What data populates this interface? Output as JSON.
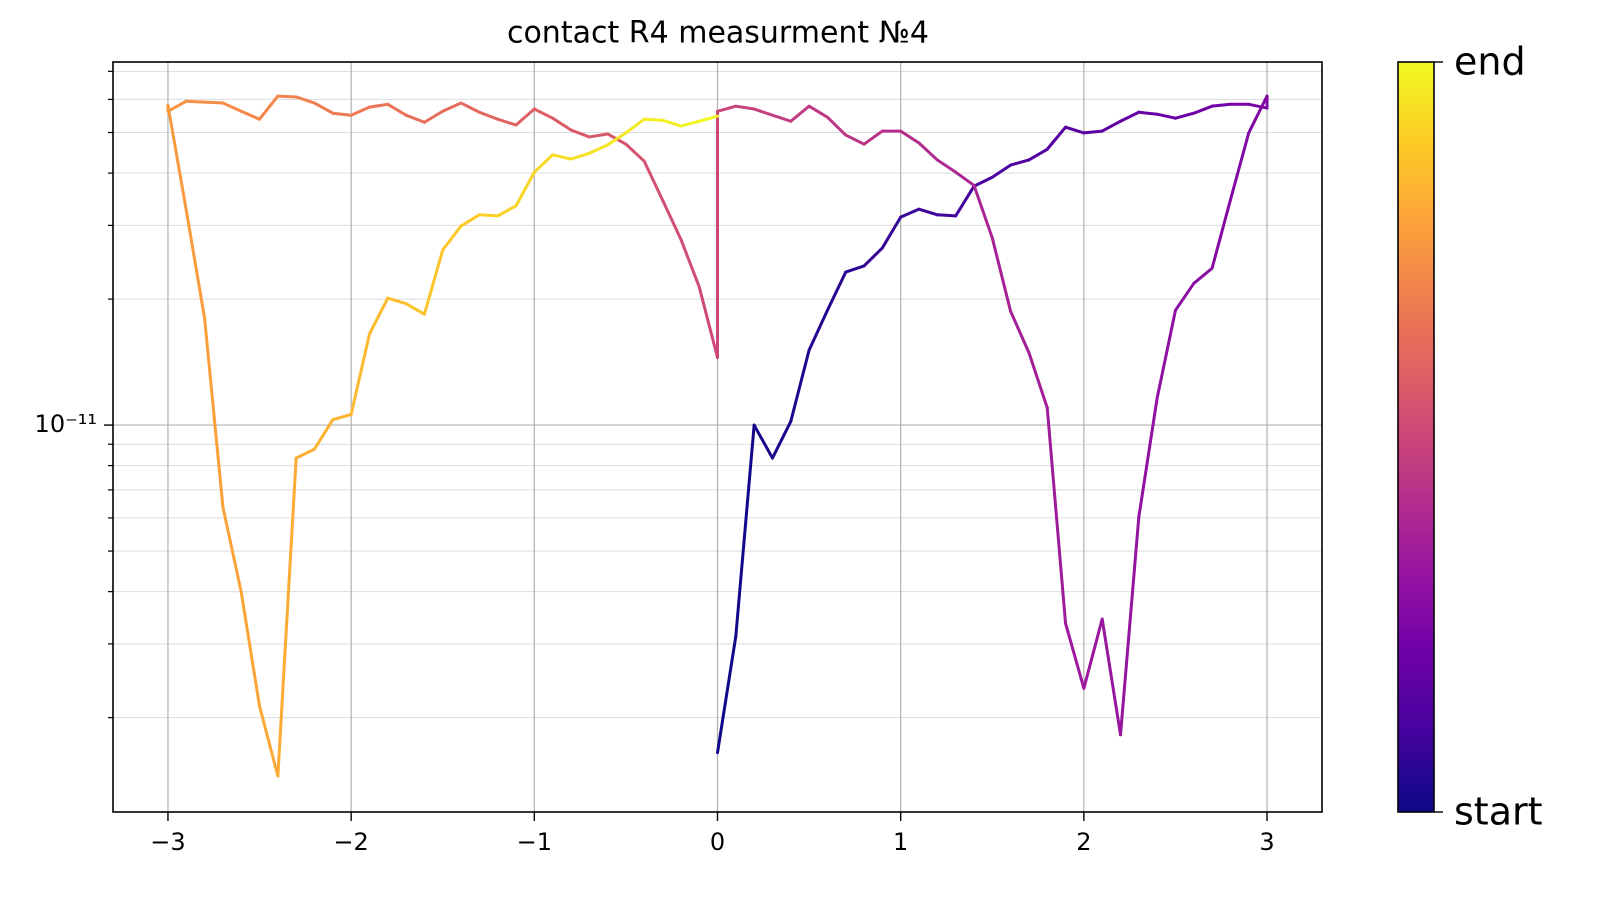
{
  "chart_data": {
    "type": "colored-line",
    "title": "contact R4 measurment №4",
    "x": [
      0,
      0.1,
      0.2,
      0.3,
      0.4,
      0.5,
      0.6,
      0.7,
      0.8,
      0.9,
      1.0,
      1.1,
      1.2,
      1.3,
      1.4,
      1.5,
      1.6,
      1.7,
      1.8,
      1.9,
      2.0,
      2.1,
      2.2,
      2.3,
      2.4,
      2.5,
      2.6,
      2.7,
      2.8,
      2.9,
      3.0,
      3.0,
      2.9,
      2.8,
      2.7,
      2.6,
      2.5,
      2.4,
      2.3,
      2.2,
      2.1,
      2.0,
      1.9,
      1.8,
      1.7,
      1.6,
      1.5,
      1.4,
      1.3,
      1.2,
      1.1,
      1.0,
      0.9,
      0.8,
      0.7,
      0.6,
      0.5,
      0.4,
      0.3,
      0.2,
      0.1,
      0,
      0,
      -0.1,
      -0.2,
      -0.3,
      -0.4,
      -0.5,
      -0.6,
      -0.7,
      -0.8,
      -0.9,
      -1.0,
      -1.1,
      -1.2,
      -1.3,
      -1.4,
      -1.5,
      -1.6,
      -1.7,
      -1.8,
      -1.9,
      -2.0,
      -2.1,
      -2.2,
      -2.3,
      -2.4,
      -2.5,
      -2.6,
      -2.7,
      -2.8,
      -2.9,
      -3.0,
      -3.0,
      -2.9,
      -2.8,
      -2.7,
      -2.6,
      -2.5,
      -2.4,
      -2.3,
      -2.2,
      -2.1,
      -2.0,
      -1.9,
      -1.8,
      -1.7,
      -1.6,
      -1.5,
      -1.4,
      -1.3,
      -1.2,
      -1.1,
      -1.0,
      -0.9,
      -0.8,
      -0.7,
      -0.6,
      -0.5,
      -0.4,
      -0.3,
      -0.2,
      -0.1,
      0
    ],
    "values": [
      1.65e-12,
      3.13e-12,
      1e-11,
      8.34e-12,
      1.02e-11,
      1.51e-11,
      1.88e-11,
      2.32e-11,
      2.4e-11,
      2.65e-11,
      3.14e-11,
      3.28e-11,
      3.18e-11,
      3.16e-11,
      3.72e-11,
      3.91e-11,
      4.18e-11,
      4.3e-11,
      4.56e-11,
      5.15e-11,
      4.99e-11,
      5.04e-11,
      5.32e-11,
      5.59e-11,
      5.53e-11,
      5.41e-11,
      5.56e-11,
      5.78e-11,
      5.84e-11,
      5.84e-11,
      5.72e-11,
      6.11e-11,
      4.99e-11,
      3.45e-11,
      2.37e-11,
      2.18e-11,
      1.88e-11,
      1.16e-11,
      6.03e-12,
      1.82e-12,
      3.44e-12,
      2.35e-12,
      3.36e-12,
      1.1e-11,
      1.49e-11,
      1.87e-11,
      2.8e-11,
      3.74e-11,
      4.02e-11,
      4.3e-11,
      4.72e-11,
      5.04e-11,
      5.04e-11,
      4.69e-11,
      4.93e-11,
      5.44e-11,
      5.78e-11,
      5.32e-11,
      5.5e-11,
      5.69e-11,
      5.78e-11,
      5.62e-11,
      1.45e-11,
      2.14e-11,
      2.78e-11,
      3.45e-11,
      4.27e-11,
      4.69e-11,
      4.96e-11,
      4.88e-11,
      5.07e-11,
      5.41e-11,
      5.69e-11,
      5.21e-11,
      5.38e-11,
      5.59e-11,
      5.88e-11,
      5.62e-11,
      5.29e-11,
      5.5e-11,
      5.84e-11,
      5.75e-11,
      5.5e-11,
      5.56e-11,
      5.88e-11,
      6.08e-11,
      6.11e-11,
      5.38e-11,
      5.62e-11,
      5.88e-11,
      5.91e-11,
      5.94e-11,
      5.62e-11,
      5.81e-11,
      3.26e-11,
      1.8e-11,
      6.37e-12,
      3.99e-12,
      2.13e-12,
      1.45e-12,
      8.34e-12,
      8.76e-12,
      1.03e-11,
      1.06e-11,
      1.65e-11,
      2.01e-11,
      1.95e-11,
      1.84e-11,
      2.62e-11,
      2.99e-11,
      3.18e-11,
      3.16e-11,
      3.34e-11,
      4.02e-11,
      4.42e-11,
      4.32e-11,
      4.46e-11,
      4.67e-11,
      4.99e-11,
      5.38e-11,
      5.35e-11,
      5.18e-11,
      5.32e-11,
      5.47e-11
    ],
    "xlim": [
      -3.3,
      3.3
    ],
    "ylim": [
      1.19e-12,
      7.37e-11
    ],
    "log_y": true,
    "grid": true,
    "xticks": [
      {
        "value": -3,
        "label": "−3"
      },
      {
        "value": -2,
        "label": "−2"
      },
      {
        "value": -1,
        "label": "−1"
      },
      0,
      1,
      2,
      3
    ],
    "yticks": [
      {
        "value": 1e-11,
        "label": "10⁻¹¹"
      }
    ],
    "yminor_ticks": [
      2e-12,
      3e-12,
      4e-12,
      5e-12,
      6e-12,
      7e-12,
      8e-12,
      9e-12,
      2e-11,
      3e-11,
      4e-11,
      5e-11,
      6e-11,
      7e-11
    ],
    "colormap": [
      "#0d0887",
      "#46039f",
      "#7201a8",
      "#9c179e",
      "#bd3786",
      "#d8576b",
      "#ed7953",
      "#fb9f3a",
      "#fdca26",
      "#f0f921"
    ],
    "colorbar_labels": [
      "start",
      "end"
    ]
  }
}
